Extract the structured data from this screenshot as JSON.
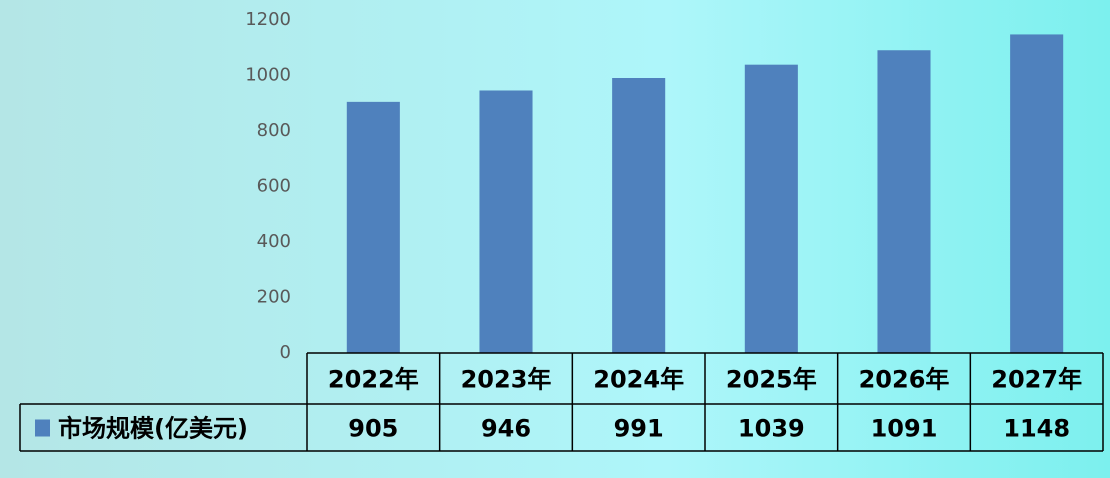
{
  "chart_data": {
    "type": "bar",
    "categories": [
      "2022年",
      "2023年",
      "2024年",
      "2025年",
      "2026年",
      "2027年"
    ],
    "series": [
      {
        "name": "市场规模(亿美元)",
        "color": "#4f81bd",
        "values": [
          905,
          946,
          991,
          1039,
          1091,
          1148
        ]
      }
    ],
    "ylim": [
      0,
      1200
    ],
    "yticks": [
      0,
      200,
      400,
      600,
      800,
      1000,
      1200
    ],
    "grid": false,
    "legend": "data-table"
  }
}
